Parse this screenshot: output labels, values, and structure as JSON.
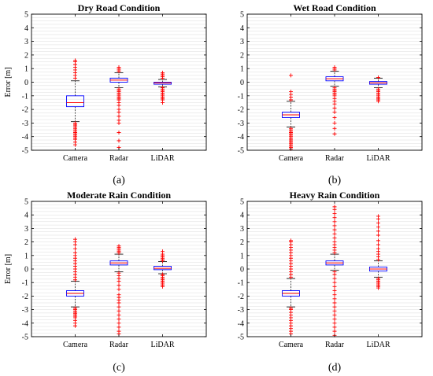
{
  "chart_data": [
    {
      "type": "box",
      "title": "Dry Road Condition",
      "panel_label": "(a)",
      "ylabel": "Error [m]",
      "ylim": [
        -5,
        5
      ],
      "yticks": [
        -5,
        -4,
        -3,
        -2,
        -1,
        0,
        1,
        2,
        3,
        4,
        5
      ],
      "grid": true,
      "categories": [
        "Camera",
        "Radar",
        "LiDAR"
      ],
      "boxes": [
        {
          "median": -1.5,
          "q1": -1.8,
          "q3": -1.0,
          "whisker_low": -2.9,
          "whisker_high": 0.1,
          "outliers": [
            -3.0,
            -3.1,
            -3.2,
            -3.3,
            -3.4,
            -3.5,
            -3.6,
            -3.7,
            -3.8,
            -3.9,
            -4.0,
            -4.1,
            -4.2,
            -4.4,
            -4.6,
            0.3,
            0.5,
            0.7,
            0.9,
            1.1,
            1.3,
            1.5,
            1.6
          ]
        },
        {
          "median": 0.15,
          "q1": 0.0,
          "q3": 0.3,
          "whisker_low": -0.4,
          "whisker_high": 0.7,
          "outliers": [
            -0.5,
            -0.6,
            -0.7,
            -0.8,
            -0.9,
            -1.0,
            -1.1,
            -1.2,
            -1.3,
            -1.5,
            -1.7,
            -2.0,
            -2.2,
            -2.5,
            -2.8,
            -3.0,
            -3.7,
            -4.3,
            -4.8,
            0.8,
            0.9,
            1.0,
            1.1
          ]
        },
        {
          "median": -0.05,
          "q1": -0.15,
          "q3": 0.0,
          "whisker_low": -0.35,
          "whisker_high": 0.2,
          "outliers": [
            -0.4,
            -0.5,
            -0.6,
            -0.7,
            -0.8,
            -0.9,
            -1.0,
            -1.1,
            -1.2,
            -1.3,
            -1.5,
            0.3,
            0.4,
            0.5,
            0.6,
            0.7
          ]
        }
      ]
    },
    {
      "type": "box",
      "title": "Wet Road Condition",
      "panel_label": "(b)",
      "ylabel": "",
      "ylim": [
        -5,
        5
      ],
      "yticks": [
        -5,
        -4,
        -3,
        -2,
        -1,
        0,
        1,
        2,
        3,
        4,
        5
      ],
      "grid": true,
      "categories": [
        "Camera",
        "Radar",
        "LiDAR"
      ],
      "boxes": [
        {
          "median": -2.4,
          "q1": -2.6,
          "q3": -2.2,
          "whisker_low": -3.3,
          "whisker_high": -1.4,
          "outliers": [
            -3.4,
            -3.5,
            -3.6,
            -3.7,
            -3.8,
            -3.9,
            -4.0,
            -4.1,
            -4.2,
            -4.3,
            -4.4,
            -4.5,
            -4.6,
            -4.7,
            -4.8,
            -4.9,
            -1.3,
            -1.1,
            -0.9,
            -0.7,
            0.5
          ]
        },
        {
          "median": 0.25,
          "q1": 0.1,
          "q3": 0.4,
          "whisker_low": -0.3,
          "whisker_high": 0.8,
          "outliers": [
            -0.4,
            -0.5,
            -0.6,
            -0.7,
            -0.8,
            -0.9,
            -1.0,
            -1.2,
            -1.4,
            -1.6,
            -1.9,
            -2.2,
            -2.6,
            -3.0,
            -3.4,
            -3.8,
            0.9,
            1.0,
            1.1
          ]
        },
        {
          "median": -0.05,
          "q1": -0.15,
          "q3": 0.05,
          "whisker_low": -0.4,
          "whisker_high": 0.3,
          "outliers": [
            -0.5,
            -0.6,
            -0.7,
            -0.8,
            -0.9,
            -1.0,
            -1.1,
            -1.2,
            -1.3,
            -1.4,
            0.35
          ]
        }
      ]
    },
    {
      "type": "box",
      "title": "Moderate Rain Condition",
      "panel_label": "(c)",
      "ylabel": "Error [m]",
      "ylim": [
        -5,
        5
      ],
      "yticks": [
        -5,
        -4,
        -3,
        -2,
        -1,
        0,
        1,
        2,
        3,
        4,
        5
      ],
      "grid": true,
      "categories": [
        "Camera",
        "Radar",
        "LiDAR"
      ],
      "boxes": [
        {
          "median": -1.8,
          "q1": -2.0,
          "q3": -1.6,
          "whisker_low": -2.8,
          "whisker_high": -0.9,
          "outliers": [
            -2.9,
            -3.0,
            -3.1,
            -3.2,
            -3.3,
            -3.4,
            -3.5,
            -3.6,
            -3.8,
            -4.0,
            -4.2,
            -0.8,
            -0.6,
            -0.4,
            -0.2,
            0.0,
            0.2,
            0.4,
            0.6,
            0.8,
            1.0,
            1.2,
            1.5,
            1.8,
            2.0,
            2.2
          ]
        },
        {
          "median": 0.45,
          "q1": 0.3,
          "q3": 0.6,
          "whisker_low": -0.2,
          "whisker_high": 1.1,
          "outliers": [
            -0.3,
            -0.5,
            -0.7,
            -0.9,
            -1.2,
            -1.5,
            -1.9,
            -2.1,
            -2.3,
            -2.5,
            -2.8,
            -3.1,
            -3.4,
            -3.7,
            -4.0,
            -4.3,
            -4.6,
            -4.8,
            1.2,
            1.3,
            1.4,
            1.5,
            1.6,
            1.7
          ]
        },
        {
          "median": 0.05,
          "q1": -0.05,
          "q3": 0.2,
          "whisker_low": -0.35,
          "whisker_high": 0.55,
          "outliers": [
            -0.4,
            -0.5,
            -0.6,
            -0.7,
            -0.8,
            -0.9,
            -1.0,
            -1.1,
            -1.2,
            -1.3,
            0.6,
            0.7,
            0.8,
            0.9,
            1.0,
            1.1,
            1.3
          ]
        }
      ]
    },
    {
      "type": "box",
      "title": "Heavy Rain Condition",
      "panel_label": "(d)",
      "ylabel": "",
      "ylim": [
        -5,
        5
      ],
      "yticks": [
        -5,
        -4,
        -3,
        -2,
        -1,
        0,
        1,
        2,
        3,
        4,
        5
      ],
      "grid": true,
      "categories": [
        "Camera",
        "Radar",
        "LiDAR"
      ],
      "boxes": [
        {
          "median": -1.8,
          "q1": -2.0,
          "q3": -1.6,
          "whisker_low": -2.8,
          "whisker_high": -0.7,
          "outliers": [
            -2.9,
            -3.0,
            -3.2,
            -3.4,
            -3.6,
            -3.8,
            -4.0,
            -4.2,
            -4.4,
            -4.6,
            -4.8,
            -0.6,
            -0.4,
            -0.2,
            0.0,
            0.2,
            0.4,
            0.6,
            0.8,
            1.0,
            1.2,
            1.4,
            1.6,
            1.8,
            2.0,
            2.1
          ]
        },
        {
          "median": 0.45,
          "q1": 0.3,
          "q3": 0.6,
          "whisker_low": -0.1,
          "whisker_high": 1.1,
          "outliers": [
            -0.2,
            -0.4,
            -0.7,
            -1.0,
            -1.3,
            -1.6,
            -1.9,
            -2.2,
            -2.5,
            -2.8,
            -3.1,
            -3.4,
            -3.7,
            -4.0,
            -4.3,
            -4.6,
            -4.9,
            1.2,
            1.4,
            1.6,
            1.8,
            2.0,
            2.3,
            2.6,
            2.9,
            3.2,
            3.5,
            3.8,
            4.1,
            4.4,
            4.6
          ]
        },
        {
          "median": 0.0,
          "q1": -0.15,
          "q3": 0.15,
          "whisker_low": -0.6,
          "whisker_high": 0.6,
          "outliers": [
            -0.7,
            -0.8,
            -0.9,
            -1.0,
            -1.1,
            -1.2,
            -1.3,
            -1.4,
            0.7,
            0.9,
            1.1,
            1.3,
            1.5,
            1.8,
            2.1,
            2.5,
            2.8,
            3.1,
            3.4,
            3.7,
            3.9
          ]
        }
      ]
    }
  ],
  "colors": {
    "box": "#0000ff",
    "median": "#ff0000",
    "outlier": "#ff0000",
    "whisker": "#000000",
    "grid": "#dcdcdc",
    "frame": "#000000"
  }
}
